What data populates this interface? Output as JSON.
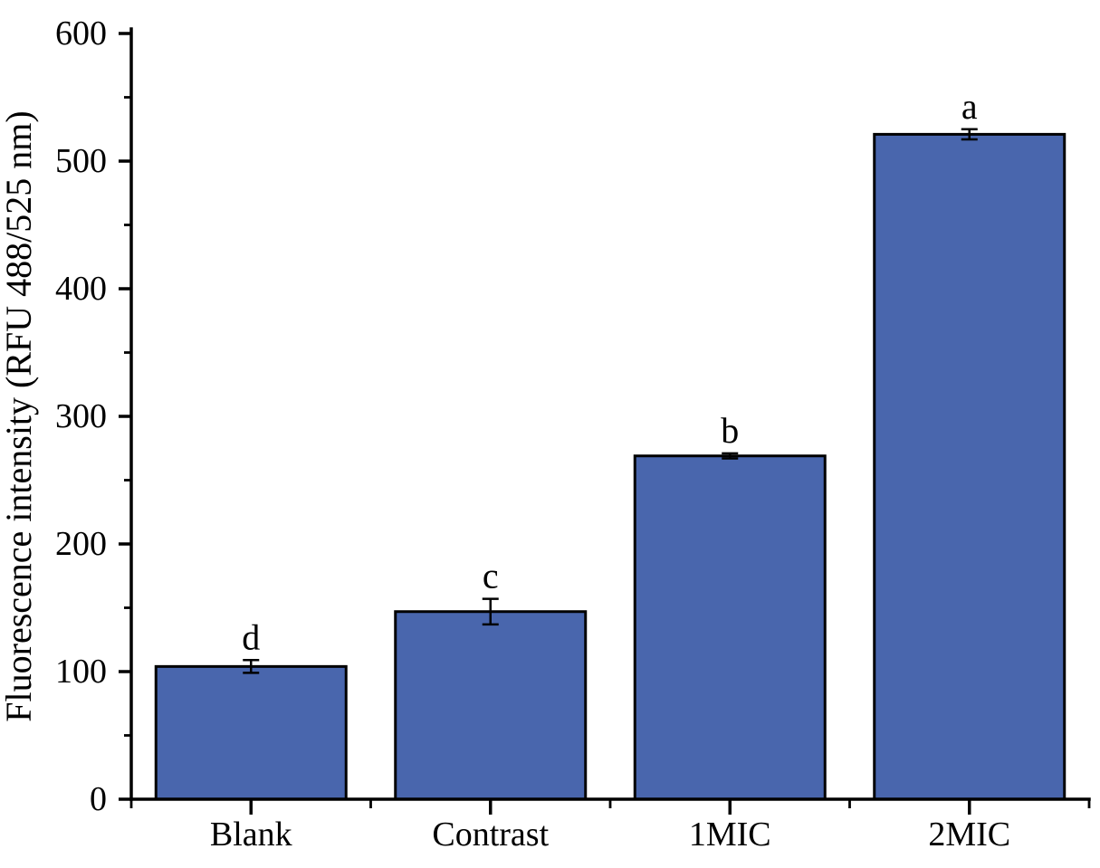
{
  "chart_data": {
    "type": "bar",
    "title": "",
    "xlabel": "",
    "ylabel": "Fluorescence intensity (RFU 488/525 nm)",
    "categories": [
      "Blank",
      "Contrast",
      "1MIC",
      "2MIC"
    ],
    "values": [
      104,
      147,
      269,
      521
    ],
    "errors": [
      5,
      10,
      2,
      4
    ],
    "sig_letters": [
      "d",
      "c",
      "b",
      "a"
    ],
    "ylim": [
      0,
      600
    ],
    "y_major_ticks": [
      0,
      100,
      200,
      300,
      400,
      500,
      600
    ],
    "y_tick_labels": [
      "0",
      "100",
      "200",
      "300",
      "400",
      "500",
      "600"
    ],
    "y_minor_ticks": [
      50,
      150,
      250,
      350,
      450,
      550
    ],
    "grid": "off",
    "legend": "none",
    "bar_fill_color": "#4966ad",
    "bar_border_color": "#000000",
    "axis_color": "#000000",
    "error_bar_color": "#000000",
    "text_color": "#000000"
  }
}
